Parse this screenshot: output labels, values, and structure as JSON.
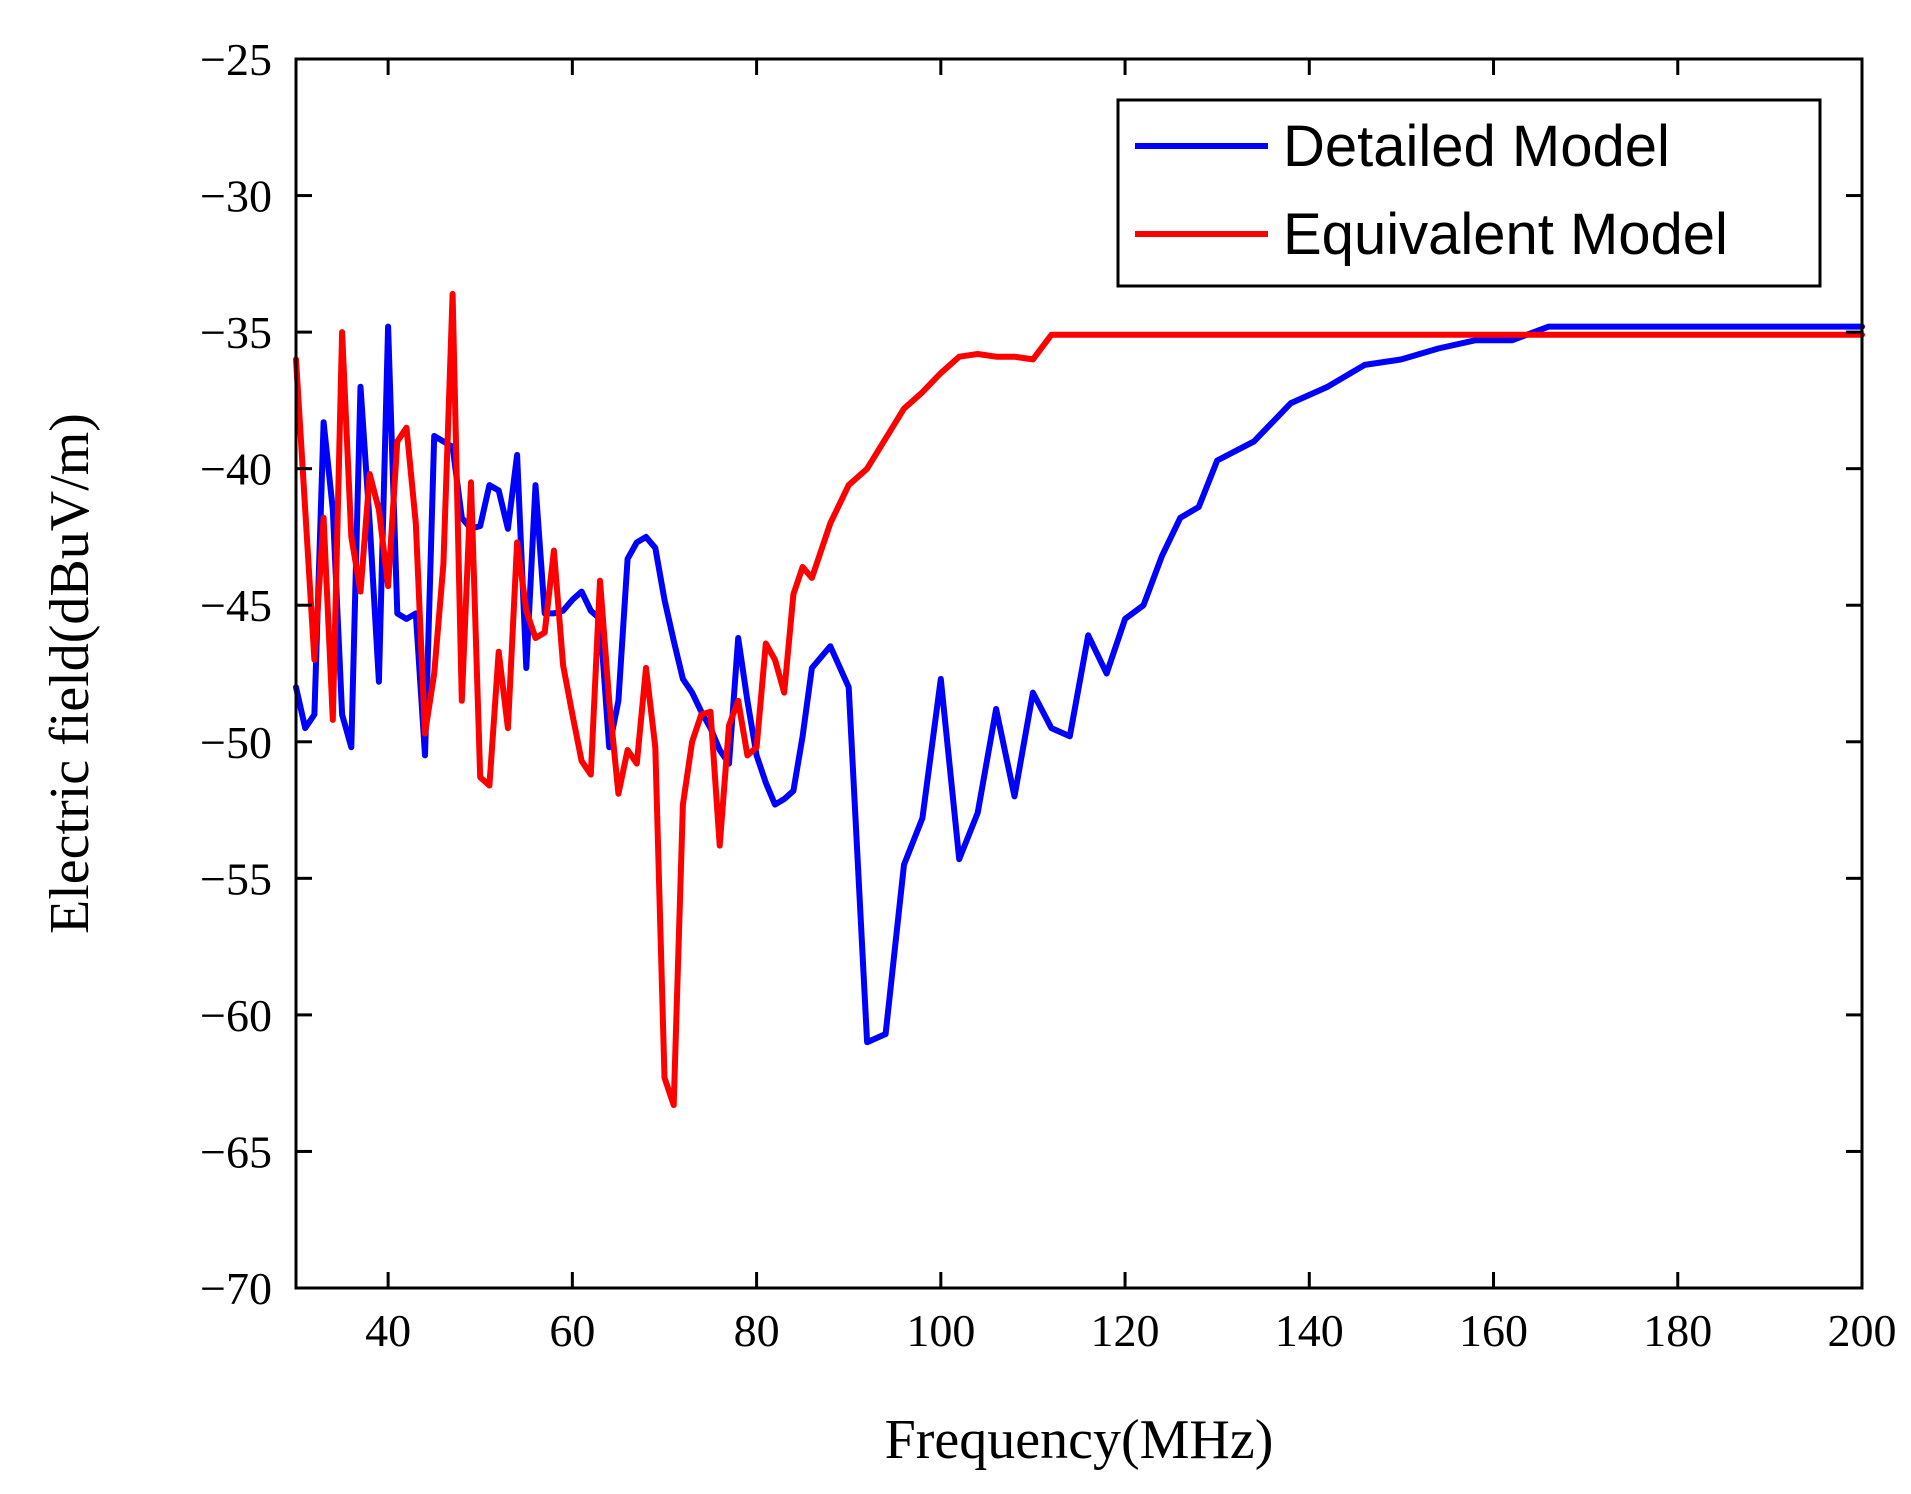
{
  "chart_data": {
    "type": "line",
    "title": "",
    "xlabel": "Frequency(MHz)",
    "ylabel": "Electric field(dBuV/m)",
    "xlim": [
      30,
      200
    ],
    "ylim": [
      -70,
      -25
    ],
    "xticks": [
      40,
      60,
      80,
      100,
      120,
      140,
      160,
      180,
      200
    ],
    "xtick_labels": [
      "40",
      "60",
      "80",
      "100",
      "120",
      "140",
      "160",
      "180",
      "200"
    ],
    "yticks": [
      -25,
      -30,
      -35,
      -40,
      -45,
      -50,
      -55,
      -60,
      -65,
      -70
    ],
    "ytick_labels": [
      "−25",
      "−30",
      "−35",
      "−40",
      "−45",
      "−50",
      "−55",
      "−60",
      "−65",
      "−70"
    ],
    "grid": false,
    "legend_position": "top-right",
    "series": [
      {
        "name": "Detailed Model",
        "color": "#0000ff",
        "x": [
          30,
          31,
          32,
          33,
          34,
          35,
          36,
          37,
          38,
          39,
          40,
          41,
          42,
          43,
          44,
          45,
          46,
          47,
          48,
          49,
          50,
          51,
          52,
          53,
          54,
          55,
          56,
          57,
          58,
          59,
          60,
          61,
          62,
          63,
          64,
          65,
          66,
          67,
          68,
          69,
          70,
          71,
          72,
          73,
          74,
          75,
          76,
          77,
          78,
          79,
          80,
          81,
          82,
          83,
          84,
          85,
          86,
          88,
          90,
          92,
          94,
          96,
          98,
          100,
          102,
          104,
          106,
          108,
          110,
          112,
          114,
          116,
          118,
          120,
          122,
          124,
          126,
          128,
          130,
          134,
          138,
          142,
          146,
          150,
          154,
          158,
          162,
          166,
          170,
          175,
          180,
          185,
          190,
          195,
          200
        ],
        "values": [
          -48,
          -49.5,
          -49,
          -38.3,
          -41.5,
          -49,
          -50.2,
          -37,
          -42,
          -47.8,
          -34.8,
          -45.3,
          -45.5,
          -45.3,
          -50.5,
          -38.8,
          -39,
          -39.2,
          -41.8,
          -42.2,
          -42.1,
          -40.6,
          -40.8,
          -42.2,
          -39.5,
          -47.3,
          -40.6,
          -45.3,
          -45.3,
          -45.2,
          -44.8,
          -44.5,
          -45.2,
          -45.5,
          -50.2,
          -48.5,
          -43.3,
          -42.7,
          -42.5,
          -42.9,
          -44.8,
          -46.3,
          -47.7,
          -48.2,
          -48.9,
          -49.5,
          -50.3,
          -50.8,
          -46.2,
          -48.5,
          -50.5,
          -51.5,
          -52.3,
          -52.1,
          -51.8,
          -49.8,
          -47.3,
          -46.5,
          -48,
          -61,
          -60.7,
          -54.5,
          -52.8,
          -47.7,
          -54.3,
          -52.6,
          -48.8,
          -52,
          -48.2,
          -49.5,
          -49.8,
          -46.1,
          -47.5,
          -45.5,
          -45,
          -43.2,
          -41.8,
          -41.4,
          -39.7,
          -39,
          -37.6,
          -37,
          -36.2,
          -36,
          -35.6,
          -35.3,
          -35.3,
          -34.8,
          -34.8,
          -34.8,
          -34.8,
          -34.8,
          -34.8,
          -34.8,
          -34.8
        ],
        "values_note": "digitized"
      },
      {
        "name": "Equivalent Model",
        "color": "#ff0000",
        "x": [
          30,
          31,
          32,
          33,
          34,
          35,
          36,
          37,
          38,
          39,
          40,
          41,
          42,
          43,
          44,
          45,
          46,
          47,
          48,
          49,
          50,
          51,
          52,
          53,
          54,
          55,
          56,
          57,
          58,
          59,
          60,
          61,
          62,
          63,
          64,
          65,
          66,
          67,
          68,
          69,
          70,
          71,
          72,
          73,
          74,
          75,
          76,
          77,
          78,
          79,
          80,
          81,
          82,
          83,
          84,
          85,
          86,
          88,
          90,
          92,
          94,
          96,
          98,
          100,
          102,
          104,
          106,
          108,
          110,
          112,
          114,
          116,
          118,
          120,
          122,
          124,
          126,
          128,
          130,
          134,
          138,
          142,
          146,
          150,
          154,
          158,
          162,
          166,
          170,
          175,
          180,
          185,
          190,
          195,
          200
        ],
        "values": [
          -36,
          -41.5,
          -47,
          -41.8,
          -49.2,
          -35,
          -42.5,
          -44.5,
          -40.2,
          -41.5,
          -44.3,
          -39,
          -38.5,
          -42,
          -49.7,
          -47.5,
          -43.5,
          -33.6,
          -48.5,
          -40.5,
          -51.3,
          -51.6,
          -46.7,
          -49.5,
          -42.7,
          -45.2,
          -46.2,
          -46,
          -43,
          -47.2,
          -49,
          -50.7,
          -51.2,
          -44.1,
          -48.5,
          -51.9,
          -50.3,
          -50.8,
          -47.3,
          -50.2,
          -62.3,
          -63.3,
          -52.3,
          -50,
          -49,
          -48.9,
          -53.8,
          -49.4,
          -48.5,
          -50.5,
          -50.2,
          -46.4,
          -47,
          -48.2,
          -44.6,
          -43.6,
          -44,
          -42,
          -40.6,
          -40,
          -38.9,
          -37.8,
          -37.2,
          -36.5,
          -35.9,
          -35.8,
          -35.9,
          -35.9,
          -36,
          -35.1,
          -35.1,
          -35.1,
          -35.1,
          -35.1,
          -35.1,
          -35.1,
          -35.1,
          -35.1,
          -35.1,
          -35.1,
          -35.1,
          -35.1,
          -35.1,
          -35.1,
          -35.1,
          -35.1,
          -35.1,
          -35.1,
          -35.1,
          -35.1,
          -35.1,
          -35.1,
          -35.1,
          -35.1,
          -35.1
        ],
        "values_note": "digitized"
      }
    ]
  }
}
